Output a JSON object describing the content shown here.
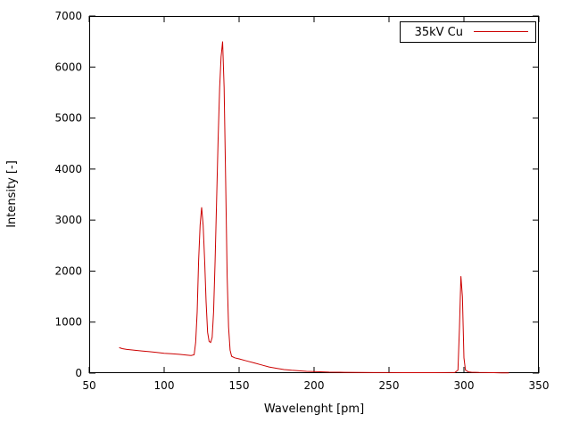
{
  "chart_data": {
    "type": "line",
    "title": "",
    "xlabel": "Wavelenght [pm]",
    "ylabel": "Intensity [-]",
    "xlim": [
      50,
      350
    ],
    "ylim": [
      0,
      7000
    ],
    "xticks": [
      50,
      100,
      150,
      200,
      250,
      300,
      350
    ],
    "yticks": [
      0,
      1000,
      2000,
      3000,
      4000,
      5000,
      6000,
      7000
    ],
    "grid": false,
    "legend_position": "top-right",
    "background_color": "#ffffff",
    "border_color": "#000000",
    "series": [
      {
        "name": "35kV Cu",
        "color": "#cc0000",
        "points": [
          [
            70,
            500
          ],
          [
            72,
            480
          ],
          [
            75,
            465
          ],
          [
            78,
            455
          ],
          [
            80,
            450
          ],
          [
            85,
            435
          ],
          [
            90,
            420
          ],
          [
            95,
            405
          ],
          [
            100,
            390
          ],
          [
            105,
            378
          ],
          [
            110,
            368
          ],
          [
            115,
            355
          ],
          [
            118,
            345
          ],
          [
            120,
            360
          ],
          [
            121,
            600
          ],
          [
            122,
            1200
          ],
          [
            123,
            2200
          ],
          [
            124,
            2900
          ],
          [
            125,
            3250
          ],
          [
            126,
            2900
          ],
          [
            127,
            2200
          ],
          [
            128,
            1400
          ],
          [
            129,
            800
          ],
          [
            130,
            620
          ],
          [
            131,
            600
          ],
          [
            132,
            700
          ],
          [
            133,
            1200
          ],
          [
            134,
            2200
          ],
          [
            135,
            3400
          ],
          [
            136,
            4600
          ],
          [
            137,
            5600
          ],
          [
            138,
            6200
          ],
          [
            139,
            6500
          ],
          [
            140,
            5600
          ],
          [
            141,
            3800
          ],
          [
            142,
            1900
          ],
          [
            143,
            900
          ],
          [
            144,
            450
          ],
          [
            145,
            330
          ],
          [
            147,
            300
          ],
          [
            150,
            280
          ],
          [
            155,
            240
          ],
          [
            160,
            200
          ],
          [
            165,
            160
          ],
          [
            170,
            120
          ],
          [
            175,
            95
          ],
          [
            180,
            70
          ],
          [
            185,
            55
          ],
          [
            190,
            45
          ],
          [
            195,
            35
          ],
          [
            200,
            30
          ],
          [
            210,
            20
          ],
          [
            220,
            15
          ],
          [
            230,
            12
          ],
          [
            240,
            10
          ],
          [
            250,
            10
          ],
          [
            260,
            8
          ],
          [
            270,
            8
          ],
          [
            280,
            8
          ],
          [
            290,
            10
          ],
          [
            294,
            12
          ],
          [
            296,
            60
          ],
          [
            297,
            900
          ],
          [
            298,
            1900
          ],
          [
            299,
            1500
          ],
          [
            300,
            300
          ],
          [
            301,
            60
          ],
          [
            303,
            25
          ],
          [
            305,
            18
          ],
          [
            310,
            12
          ],
          [
            315,
            10
          ],
          [
            320,
            8
          ],
          [
            325,
            5
          ],
          [
            330,
            3
          ]
        ]
      }
    ]
  }
}
